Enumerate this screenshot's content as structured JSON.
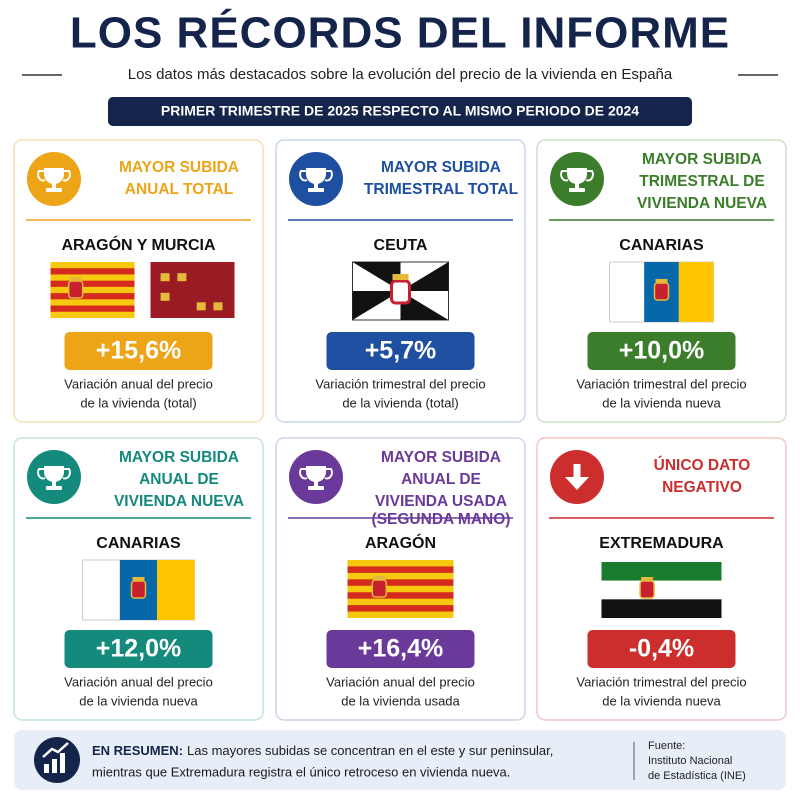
{
  "header": {
    "title": "LOS RÉCORDS DEL INFORME",
    "subtitle": "Los datos más destacados sobre la evolución del precio de la vivienda en España",
    "period": "PRIMER TRIMESTRE DE 2025 RESPECTO AL MISMO PERIODO DE 2024"
  },
  "cards": [
    {
      "heading": [
        "MAYOR SUBIDA",
        "ANUAL TOTAL"
      ],
      "region": "ARAGÓN Y MURCIA",
      "value": "+15,6%",
      "description": [
        "Variación anual del precio",
        "de la vivienda (total)"
      ]
    },
    {
      "heading": [
        "MAYOR SUBIDA",
        "TRIMESTRAL TOTAL"
      ],
      "region": "CEUTA",
      "value": "+5,7%",
      "description": [
        "Variación trimestral del precio",
        "de la vivienda (total)"
      ]
    },
    {
      "heading": [
        "MAYOR SUBIDA",
        "TRIMESTRAL DE",
        "VIVIENDA NUEVA"
      ],
      "region": "CANARIAS",
      "value": "+10,0%",
      "description": [
        "Variación trimestral del precio",
        "de la vivienda nueva"
      ]
    },
    {
      "heading": [
        "MAYOR SUBIDA",
        "ANUAL DE",
        "VIVIENDA NUEVA"
      ],
      "region": "CANARIAS",
      "value": "+12,0%",
      "description": [
        "Variación anual del precio",
        "de la vivienda nueva"
      ]
    },
    {
      "heading": [
        "MAYOR SUBIDA",
        "ANUAL DE",
        "VIVIENDA USADA"
      ],
      "note": "(SEGUNDA MANO)",
      "region": "ARAGÓN",
      "value": "+16,4%",
      "description": [
        "Variación anual del precio",
        "de la vivienda usada"
      ]
    },
    {
      "heading": [
        "ÚNICO DATO",
        "NEGATIVO"
      ],
      "region": "EXTREMADURA",
      "value": "-0,4%",
      "description": [
        "Variación trimestral del precio",
        "de la vivienda nueva"
      ]
    }
  ],
  "summary": {
    "label": "EN RESUMEN:",
    "lines": [
      "Las mayores subidas se concentran en el este y sur peninsular,",
      "mientras que Extremadura registra el único retroceso en vivienda nueva."
    ],
    "source": [
      "Fuente:",
      "Instituto Nacional",
      "de Estadística (INE)"
    ]
  }
}
